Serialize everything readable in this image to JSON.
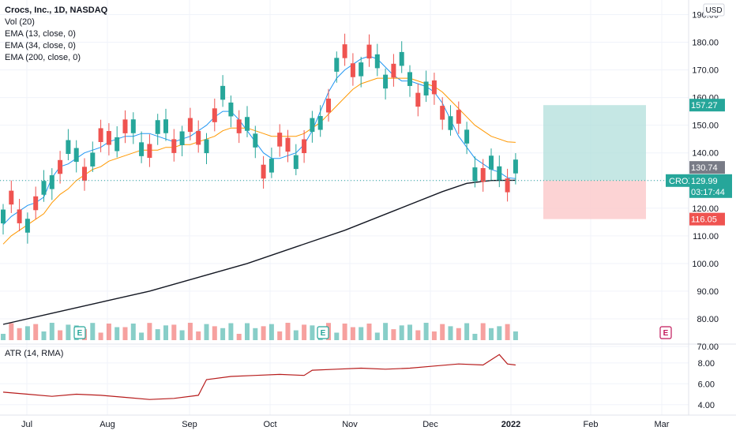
{
  "legend": {
    "title": "Crocs, Inc., 1D, NASDAQ",
    "vol": "Vol (20)",
    "ema13": "EMA (13, close, 0)",
    "ema34": "EMA (34, close, 0)",
    "ema200": "EMA (200, close, 0)"
  },
  "currency": "USD",
  "symbol": "CROX",
  "price_labels": {
    "target": "157.27",
    "ema13_value": "130.74",
    "last": "129.99",
    "countdown": "03:17:44",
    "stop": "116.05"
  },
  "earnings_marker": "E",
  "colors": {
    "up": "#26a69a",
    "down": "#ef5350",
    "ema13": "#2196f3",
    "ema34": "#ff9800",
    "ema200": "#131722",
    "atr": "#b71c1c",
    "profit_zone": "#b2dfdb",
    "loss_zone": "#fccbcd"
  },
  "chart_data": {
    "type": "candlestick",
    "x_labels": [
      "Jul",
      "Aug",
      "Sep",
      "Oct",
      "Nov",
      "Dec",
      "2022",
      "Feb",
      "Mar"
    ],
    "y_ticks": [
      "190.00",
      "180.00",
      "170.00",
      "160.00",
      "150.00",
      "140.00",
      "130.00",
      "120.00",
      "110.00",
      "100.00",
      "90.00",
      "80.00",
      "70.00"
    ],
    "ylim": [
      66,
      193
    ],
    "series": [
      {
        "name": "EMA (13, close, 0)",
        "values": [
          [
            0,
            114
          ],
          [
            1,
            117
          ],
          [
            2,
            119
          ],
          [
            3,
            121
          ],
          [
            4,
            122
          ],
          [
            5,
            124
          ],
          [
            6,
            131
          ],
          [
            7,
            135
          ],
          [
            8,
            136
          ],
          [
            9,
            138
          ],
          [
            10,
            140
          ],
          [
            11,
            141
          ],
          [
            12,
            142
          ],
          [
            13,
            144
          ],
          [
            14,
            145
          ],
          [
            15,
            146
          ],
          [
            16,
            146
          ],
          [
            17,
            147
          ],
          [
            18,
            147
          ],
          [
            19,
            146
          ],
          [
            20,
            145
          ],
          [
            21,
            144
          ],
          [
            22,
            145
          ],
          [
            23,
            146
          ],
          [
            24,
            148
          ],
          [
            25,
            150
          ],
          [
            26,
            153
          ],
          [
            27,
            155
          ],
          [
            28,
            155
          ],
          [
            29,
            152
          ],
          [
            30,
            148
          ],
          [
            31,
            144
          ],
          [
            32,
            140
          ],
          [
            33,
            138
          ],
          [
            34,
            138
          ],
          [
            35,
            139
          ],
          [
            36,
            140
          ],
          [
            37,
            143
          ],
          [
            38,
            148
          ],
          [
            39,
            155
          ],
          [
            40,
            162
          ],
          [
            41,
            167
          ],
          [
            42,
            170
          ],
          [
            43,
            172
          ],
          [
            44,
            174
          ],
          [
            45,
            175
          ],
          [
            46,
            174
          ],
          [
            47,
            171
          ],
          [
            48,
            168
          ],
          [
            49,
            166
          ],
          [
            50,
            166
          ],
          [
            51,
            165
          ],
          [
            52,
            164
          ],
          [
            53,
            162
          ],
          [
            54,
            158
          ],
          [
            55,
            152
          ],
          [
            56,
            146
          ],
          [
            57,
            142
          ],
          [
            58,
            138
          ],
          [
            59,
            136
          ],
          [
            60,
            134
          ],
          [
            61,
            133
          ],
          [
            62,
            131
          ],
          [
            63,
            130.7
          ]
        ]
      },
      {
        "name": "EMA (34, close, 0)",
        "values": [
          [
            0,
            107
          ],
          [
            1,
            110
          ],
          [
            2,
            112
          ],
          [
            3,
            114
          ],
          [
            4,
            116
          ],
          [
            5,
            118
          ],
          [
            6,
            122
          ],
          [
            7,
            125
          ],
          [
            8,
            127
          ],
          [
            9,
            130
          ],
          [
            10,
            132
          ],
          [
            11,
            134
          ],
          [
            12,
            135
          ],
          [
            13,
            137
          ],
          [
            14,
            138
          ],
          [
            15,
            139
          ],
          [
            16,
            140
          ],
          [
            17,
            141
          ],
          [
            18,
            141
          ],
          [
            19,
            141
          ],
          [
            20,
            142
          ],
          [
            21,
            142
          ],
          [
            22,
            143
          ],
          [
            23,
            143
          ],
          [
            24,
            144
          ],
          [
            25,
            145
          ],
          [
            26,
            146
          ],
          [
            27,
            148
          ],
          [
            28,
            149
          ],
          [
            29,
            149
          ],
          [
            30,
            149
          ],
          [
            31,
            148
          ],
          [
            32,
            147
          ],
          [
            33,
            146
          ],
          [
            34,
            146
          ],
          [
            35,
            146
          ],
          [
            36,
            146
          ],
          [
            37,
            147
          ],
          [
            38,
            149
          ],
          [
            39,
            151
          ],
          [
            40,
            154
          ],
          [
            41,
            157
          ],
          [
            42,
            160
          ],
          [
            43,
            163
          ],
          [
            44,
            165
          ],
          [
            45,
            166
          ],
          [
            46,
            167
          ],
          [
            47,
            167
          ],
          [
            48,
            167
          ],
          [
            49,
            167
          ],
          [
            50,
            167
          ],
          [
            51,
            166
          ],
          [
            52,
            165
          ],
          [
            53,
            164
          ],
          [
            54,
            162
          ],
          [
            55,
            159
          ],
          [
            56,
            156
          ],
          [
            57,
            153
          ],
          [
            58,
            150
          ],
          [
            59,
            148
          ],
          [
            60,
            146
          ],
          [
            61,
            145
          ],
          [
            62,
            144
          ],
          [
            63,
            143.8
          ]
        ]
      },
      {
        "name": "EMA (200, close, 0)",
        "values": [
          [
            0,
            78
          ],
          [
            6,
            82
          ],
          [
            12,
            86
          ],
          [
            18,
            90
          ],
          [
            24,
            95
          ],
          [
            30,
            100
          ],
          [
            36,
            106
          ],
          [
            42,
            112
          ],
          [
            48,
            119
          ],
          [
            54,
            126
          ],
          [
            57,
            129
          ],
          [
            60,
            130
          ],
          [
            63,
            130.1
          ]
        ]
      },
      {
        "name": "ATR (14, RMA)",
        "values": [
          [
            0,
            5.2
          ],
          [
            3,
            5.0
          ],
          [
            6,
            4.8
          ],
          [
            9,
            5.0
          ],
          [
            12,
            4.9
          ],
          [
            15,
            4.7
          ],
          [
            18,
            4.5
          ],
          [
            21,
            4.6
          ],
          [
            24,
            4.9
          ],
          [
            25,
            6.4
          ],
          [
            28,
            6.7
          ],
          [
            31,
            6.8
          ],
          [
            34,
            6.9
          ],
          [
            37,
            6.8
          ],
          [
            38,
            7.3
          ],
          [
            41,
            7.4
          ],
          [
            44,
            7.5
          ],
          [
            47,
            7.4
          ],
          [
            50,
            7.5
          ],
          [
            53,
            7.7
          ],
          [
            56,
            7.9
          ],
          [
            59,
            7.8
          ],
          [
            61,
            8.8
          ],
          [
            62,
            7.9
          ],
          [
            63,
            7.8
          ]
        ]
      }
    ],
    "position_tool": {
      "entry": 129.99,
      "target": 157.27,
      "stop": 116.05
    },
    "atr_ticks": [
      "8.00",
      "6.00",
      "4.00"
    ],
    "atr_ylim": [
      3.0,
      9.5
    ],
    "atr_label": "ATR (14, RMA)"
  }
}
